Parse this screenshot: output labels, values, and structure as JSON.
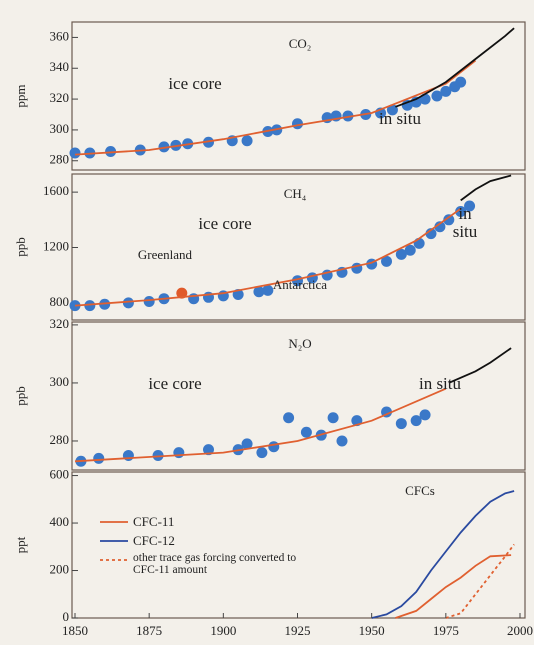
{
  "chart_data": [
    {
      "type": "line",
      "title": "CO₂",
      "ylabel": "ppm",
      "xlim": [
        1850,
        2000
      ],
      "ylim": [
        274,
        370
      ],
      "yticks": [
        280,
        300,
        320,
        340,
        360
      ],
      "annotations": [
        "ice core",
        "in situ"
      ],
      "series": [
        {
          "style": "points",
          "color": "#3a78c8",
          "x": [
            1850,
            1855,
            1862,
            1872,
            1880,
            1884,
            1888,
            1895,
            1903,
            1908,
            1915,
            1918,
            1925,
            1935,
            1938,
            1942,
            1948,
            1953,
            1957,
            1962,
            1965,
            1968,
            1972,
            1975,
            1978,
            1980
          ],
          "values": [
            285,
            285,
            286,
            287,
            289,
            290,
            291,
            292,
            293,
            293,
            299,
            300,
            304,
            308,
            309,
            309,
            310,
            311,
            313,
            316,
            318,
            320,
            322,
            325,
            328,
            331
          ]
        },
        {
          "style": "line",
          "color": "#e06030",
          "x": [
            1850,
            1875,
            1900,
            1925,
            1950,
            1975,
            1985
          ],
          "values": [
            284,
            287,
            294,
            303,
            311,
            330,
            345
          ]
        },
        {
          "style": "line",
          "color": "#111111",
          "x": [
            1958,
            1965,
            1975,
            1985,
            1995,
            1998
          ],
          "values": [
            315,
            320,
            331,
            346,
            361,
            366
          ]
        }
      ]
    },
    {
      "type": "line",
      "title": "CH₄",
      "ylabel": "ppb",
      "xlim": [
        1850,
        2000
      ],
      "ylim": [
        676,
        1731
      ],
      "yticks": [
        800,
        1200,
        1600
      ],
      "annotations": [
        "ice core",
        "Greenland",
        "Antarctica",
        "in situ"
      ],
      "series": [
        {
          "style": "points",
          "color": "#3a78c8",
          "x": [
            1850,
            1855,
            1860,
            1868,
            1875,
            1880,
            1890,
            1895,
            1900,
            1905,
            1912,
            1915,
            1925,
            1930,
            1935,
            1940,
            1945,
            1950,
            1955,
            1960,
            1963,
            1966,
            1970,
            1973,
            1976,
            1980,
            1983
          ],
          "values": [
            780,
            780,
            790,
            800,
            810,
            830,
            830,
            840,
            850,
            860,
            880,
            890,
            960,
            980,
            1000,
            1020,
            1050,
            1080,
            1100,
            1150,
            1180,
            1230,
            1300,
            1350,
            1400,
            1460,
            1500
          ]
        },
        {
          "style": "points",
          "color": "#e05a2a",
          "x": [
            1886
          ],
          "values": [
            870
          ]
        },
        {
          "style": "line",
          "color": "#e06030",
          "x": [
            1850,
            1875,
            1900,
            1925,
            1950,
            1965,
            1980
          ],
          "values": [
            780,
            820,
            870,
            970,
            1090,
            1250,
            1480
          ]
        },
        {
          "style": "line",
          "color": "#111111",
          "x": [
            1980,
            1985,
            1990,
            1997
          ],
          "values": [
            1540,
            1620,
            1680,
            1720
          ]
        }
      ]
    },
    {
      "type": "line",
      "title": "N₂O",
      "ylabel": "ppb",
      "xlim": [
        1850,
        2000
      ],
      "ylim": [
        270,
        321
      ],
      "yticks": [
        280,
        300,
        320
      ],
      "annotations": [
        "ice core",
        "in situ"
      ],
      "series": [
        {
          "style": "points",
          "color": "#3a78c8",
          "x": [
            1852,
            1858,
            1868,
            1878,
            1885,
            1895,
            1905,
            1908,
            1913,
            1917,
            1922,
            1928,
            1933,
            1937,
            1940,
            1945,
            1955,
            1960,
            1965,
            1968
          ],
          "values": [
            273,
            274,
            275,
            275,
            276,
            277,
            277,
            279,
            276,
            278,
            288,
            283,
            282,
            288,
            280,
            287,
            290,
            286,
            287,
            289
          ]
        },
        {
          "style": "line",
          "color": "#e06030",
          "x": [
            1850,
            1900,
            1925,
            1950,
            1975
          ],
          "values": [
            273,
            276,
            280,
            287,
            298
          ]
        },
        {
          "style": "line",
          "color": "#111111",
          "x": [
            1976,
            1985,
            1990,
            1997
          ],
          "values": [
            300,
            304,
            307,
            312
          ]
        }
      ]
    },
    {
      "type": "line",
      "title": "CFCs",
      "ylabel": "ppt",
      "xlim": [
        1850,
        2000
      ],
      "ylim": [
        0,
        615
      ],
      "yticks": [
        0,
        200,
        400,
        600
      ],
      "xticks": [
        1850,
        1875,
        1900,
        1925,
        1950,
        1975,
        2000
      ],
      "legend": "top-left",
      "series": [
        {
          "name": "CFC-11",
          "style": "line",
          "color": "#e06030",
          "x": [
            1958,
            1965,
            1970,
            1975,
            1980,
            1985,
            1990,
            1997
          ],
          "values": [
            0,
            30,
            80,
            130,
            170,
            220,
            260,
            265
          ]
        },
        {
          "name": "CFC-12",
          "style": "line",
          "color": "#2a4aa0",
          "x": [
            1950,
            1955,
            1960,
            1965,
            1970,
            1975,
            1980,
            1985,
            1990,
            1995,
            1998
          ],
          "values": [
            0,
            15,
            50,
            110,
            200,
            280,
            360,
            430,
            490,
            525,
            535
          ]
        },
        {
          "name": "other trace gas forcing converted to CFC-11 amount",
          "style": "dashed",
          "color": "#e06030",
          "x": [
            1975,
            1980,
            1985,
            1990,
            1995,
            1998
          ],
          "values": [
            0,
            20,
            100,
            180,
            260,
            310
          ]
        }
      ]
    }
  ]
}
